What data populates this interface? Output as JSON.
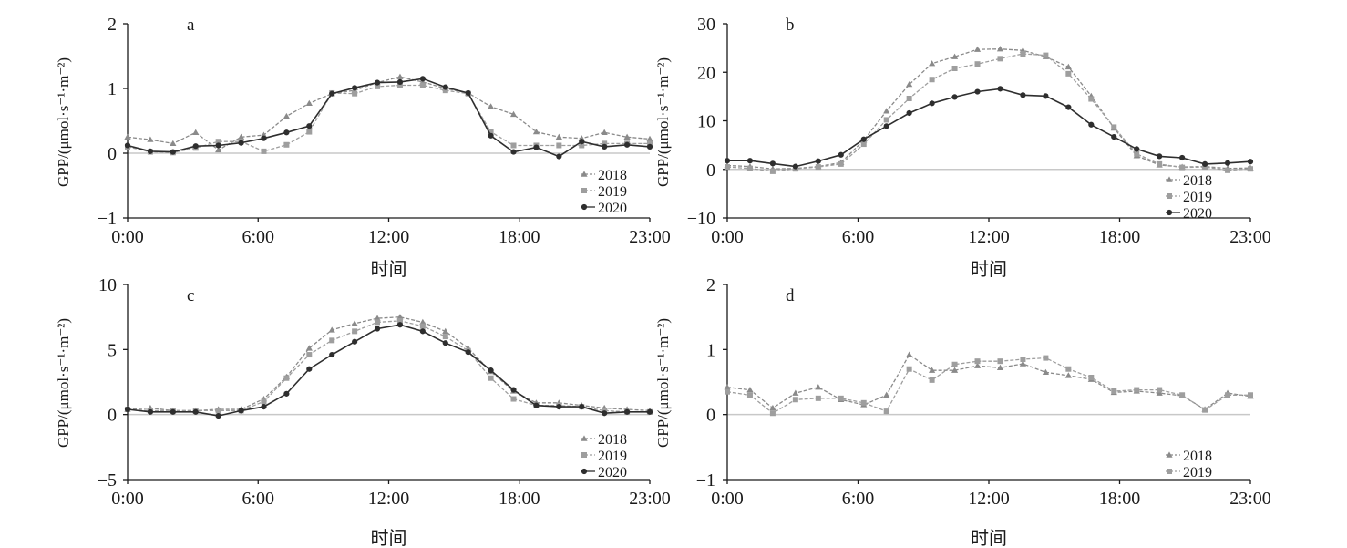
{
  "chart_data": [
    {
      "panel": "a",
      "type": "line",
      "xlabel": "时间",
      "ylabel": "GPP/(μmol·s⁻¹·m⁻²)",
      "ylim": [
        -1,
        2
      ],
      "yticks": [
        "2",
        "1",
        "0",
        "−1"
      ],
      "xticks": [
        "0:00",
        "6:00",
        "12:00",
        "18:00",
        "23:00"
      ],
      "legend_position": "bottom-right",
      "x": [
        0,
        1,
        2,
        3,
        4,
        5,
        6,
        7,
        8,
        9,
        10,
        11,
        12,
        13,
        14,
        15,
        16,
        17,
        18,
        19,
        20,
        21,
        22,
        23
      ],
      "series": [
        {
          "name": "2018",
          "marker": "triangle",
          "dash": "dashed",
          "values": [
            0.25,
            0.21,
            0.15,
            0.32,
            0.05,
            0.25,
            0.28,
            0.57,
            0.77,
            0.92,
            0.97,
            1.09,
            1.18,
            1.1,
            1.0,
            0.93,
            0.72,
            0.6,
            0.33,
            0.25,
            0.23,
            0.32,
            0.25,
            0.22
          ]
        },
        {
          "name": "2019",
          "marker": "square",
          "dash": "dashed",
          "values": [
            0.1,
            0.02,
            0.01,
            0.08,
            0.18,
            0.18,
            0.03,
            0.13,
            0.33,
            0.93,
            0.92,
            1.03,
            1.05,
            1.05,
            0.97,
            0.92,
            0.33,
            0.12,
            0.12,
            0.12,
            0.12,
            0.15,
            0.15,
            0.15
          ]
        },
        {
          "name": "2020",
          "marker": "circle",
          "dash": "solid",
          "values": [
            0.12,
            0.03,
            0.02,
            0.11,
            0.12,
            0.16,
            0.23,
            0.32,
            0.42,
            0.92,
            1.01,
            1.09,
            1.1,
            1.15,
            1.02,
            0.93,
            0.27,
            0.02,
            0.09,
            -0.05,
            0.18,
            0.1,
            0.13,
            0.1
          ]
        }
      ]
    },
    {
      "panel": "b",
      "type": "line",
      "xlabel": "时间",
      "ylabel": "GPP/(μmol·s⁻¹·m⁻²)",
      "ylim": [
        -10,
        30
      ],
      "yticks": [
        "30",
        "20",
        "10",
        "0",
        "−10"
      ],
      "xticks": [
        "0:00",
        "6:00",
        "12:00",
        "18:00",
        "23:00"
      ],
      "legend_position": "bottom-right",
      "x": [
        0,
        1,
        2,
        3,
        4,
        5,
        6,
        7,
        8,
        9,
        10,
        11,
        12,
        13,
        14,
        15,
        16,
        17,
        18,
        19,
        20,
        21,
        22,
        23
      ],
      "series": [
        {
          "name": "2018",
          "marker": "triangle",
          "dash": "dashed",
          "values": [
            0.8,
            0.6,
            0.1,
            0.2,
            0.6,
            1.4,
            6.0,
            12.0,
            17.5,
            21.8,
            23.2,
            24.7,
            24.8,
            24.5,
            23.2,
            21.1,
            15.1,
            8.5,
            2.8,
            0.9,
            0.5,
            0.6,
            0.2,
            0.3
          ]
        },
        {
          "name": "2019",
          "marker": "square",
          "dash": "dashed",
          "values": [
            0.5,
            0.2,
            -0.4,
            0.1,
            0.5,
            1.1,
            5.2,
            10.2,
            14.6,
            18.5,
            20.8,
            21.7,
            22.8,
            23.8,
            23.5,
            19.7,
            14.5,
            8.7,
            3.2,
            1.1,
            0.4,
            0.5,
            -0.2,
            0.1
          ]
        },
        {
          "name": "2020",
          "marker": "circle",
          "dash": "solid",
          "values": [
            1.8,
            1.8,
            1.2,
            0.6,
            1.7,
            3.0,
            6.2,
            8.9,
            11.6,
            13.6,
            14.9,
            16.0,
            16.6,
            15.3,
            15.1,
            12.8,
            9.2,
            6.7,
            4.2,
            2.7,
            2.4,
            1.1,
            1.3,
            1.6
          ]
        }
      ]
    },
    {
      "panel": "c",
      "type": "line",
      "xlabel": "时间",
      "ylabel": "GPP/(μmol·s⁻¹·m⁻²)",
      "ylim": [
        -5,
        10
      ],
      "yticks": [
        "10",
        "5",
        "0",
        "−5"
      ],
      "xticks": [
        "0:00",
        "6:00",
        "12:00",
        "18:00",
        "23:00"
      ],
      "legend_position": "bottom-right",
      "x": [
        0,
        1,
        2,
        3,
        4,
        5,
        6,
        7,
        8,
        9,
        10,
        11,
        12,
        13,
        14,
        15,
        16,
        17,
        18,
        19,
        20,
        21,
        22,
        23
      ],
      "series": [
        {
          "name": "2018",
          "marker": "triangle",
          "dash": "dashed",
          "values": [
            0.4,
            0.5,
            0.3,
            0.3,
            0.4,
            0.4,
            1.2,
            2.9,
            5.1,
            6.5,
            7.0,
            7.4,
            7.5,
            7.1,
            6.4,
            5.1,
            3.3,
            1.8,
            0.9,
            0.9,
            0.7,
            0.5,
            0.4,
            0.3
          ]
        },
        {
          "name": "2019",
          "marker": "square",
          "dash": "dashed",
          "values": [
            0.4,
            0.3,
            0.3,
            0.3,
            0.3,
            0.3,
            1.0,
            2.8,
            4.6,
            5.7,
            6.4,
            7.1,
            7.2,
            6.8,
            6.0,
            4.9,
            2.8,
            1.2,
            0.7,
            0.7,
            0.6,
            0.3,
            0.2,
            0.2
          ]
        },
        {
          "name": "2020",
          "marker": "circle",
          "dash": "solid",
          "values": [
            0.4,
            0.2,
            0.2,
            0.2,
            -0.1,
            0.3,
            0.6,
            1.6,
            3.5,
            4.6,
            5.6,
            6.6,
            6.9,
            6.4,
            5.5,
            4.8,
            3.4,
            1.9,
            0.7,
            0.6,
            0.6,
            0.1,
            0.2,
            0.2
          ]
        }
      ]
    },
    {
      "panel": "d",
      "type": "line",
      "xlabel": "时间",
      "ylabel": "GPP/(μmol·s⁻¹·m⁻²)",
      "ylim": [
        -1,
        2
      ],
      "yticks": [
        "2",
        "1",
        "0",
        "−1"
      ],
      "xticks": [
        "0:00",
        "6:00",
        "12:00",
        "18:00",
        "23:00"
      ],
      "legend_position": "bottom-right",
      "x": [
        0,
        1,
        2,
        3,
        4,
        5,
        6,
        7,
        8,
        9,
        10,
        11,
        12,
        13,
        14,
        15,
        16,
        17,
        18,
        19,
        20,
        21,
        22,
        23
      ],
      "series": [
        {
          "name": "2018",
          "marker": "triangle",
          "dash": "dashed",
          "values": [
            0.42,
            0.38,
            0.1,
            0.33,
            0.42,
            0.23,
            0.15,
            0.3,
            0.92,
            0.68,
            0.68,
            0.75,
            0.72,
            0.78,
            0.65,
            0.6,
            0.54,
            0.34,
            0.36,
            0.33,
            0.29,
            0.08,
            0.33,
            0.28
          ]
        },
        {
          "name": "2019",
          "marker": "square",
          "dash": "dashed",
          "values": [
            0.35,
            0.3,
            0.02,
            0.23,
            0.25,
            0.25,
            0.18,
            0.05,
            0.7,
            0.53,
            0.77,
            0.82,
            0.82,
            0.85,
            0.87,
            0.7,
            0.57,
            0.36,
            0.38,
            0.38,
            0.3,
            0.07,
            0.3,
            0.3
          ]
        }
      ]
    }
  ]
}
